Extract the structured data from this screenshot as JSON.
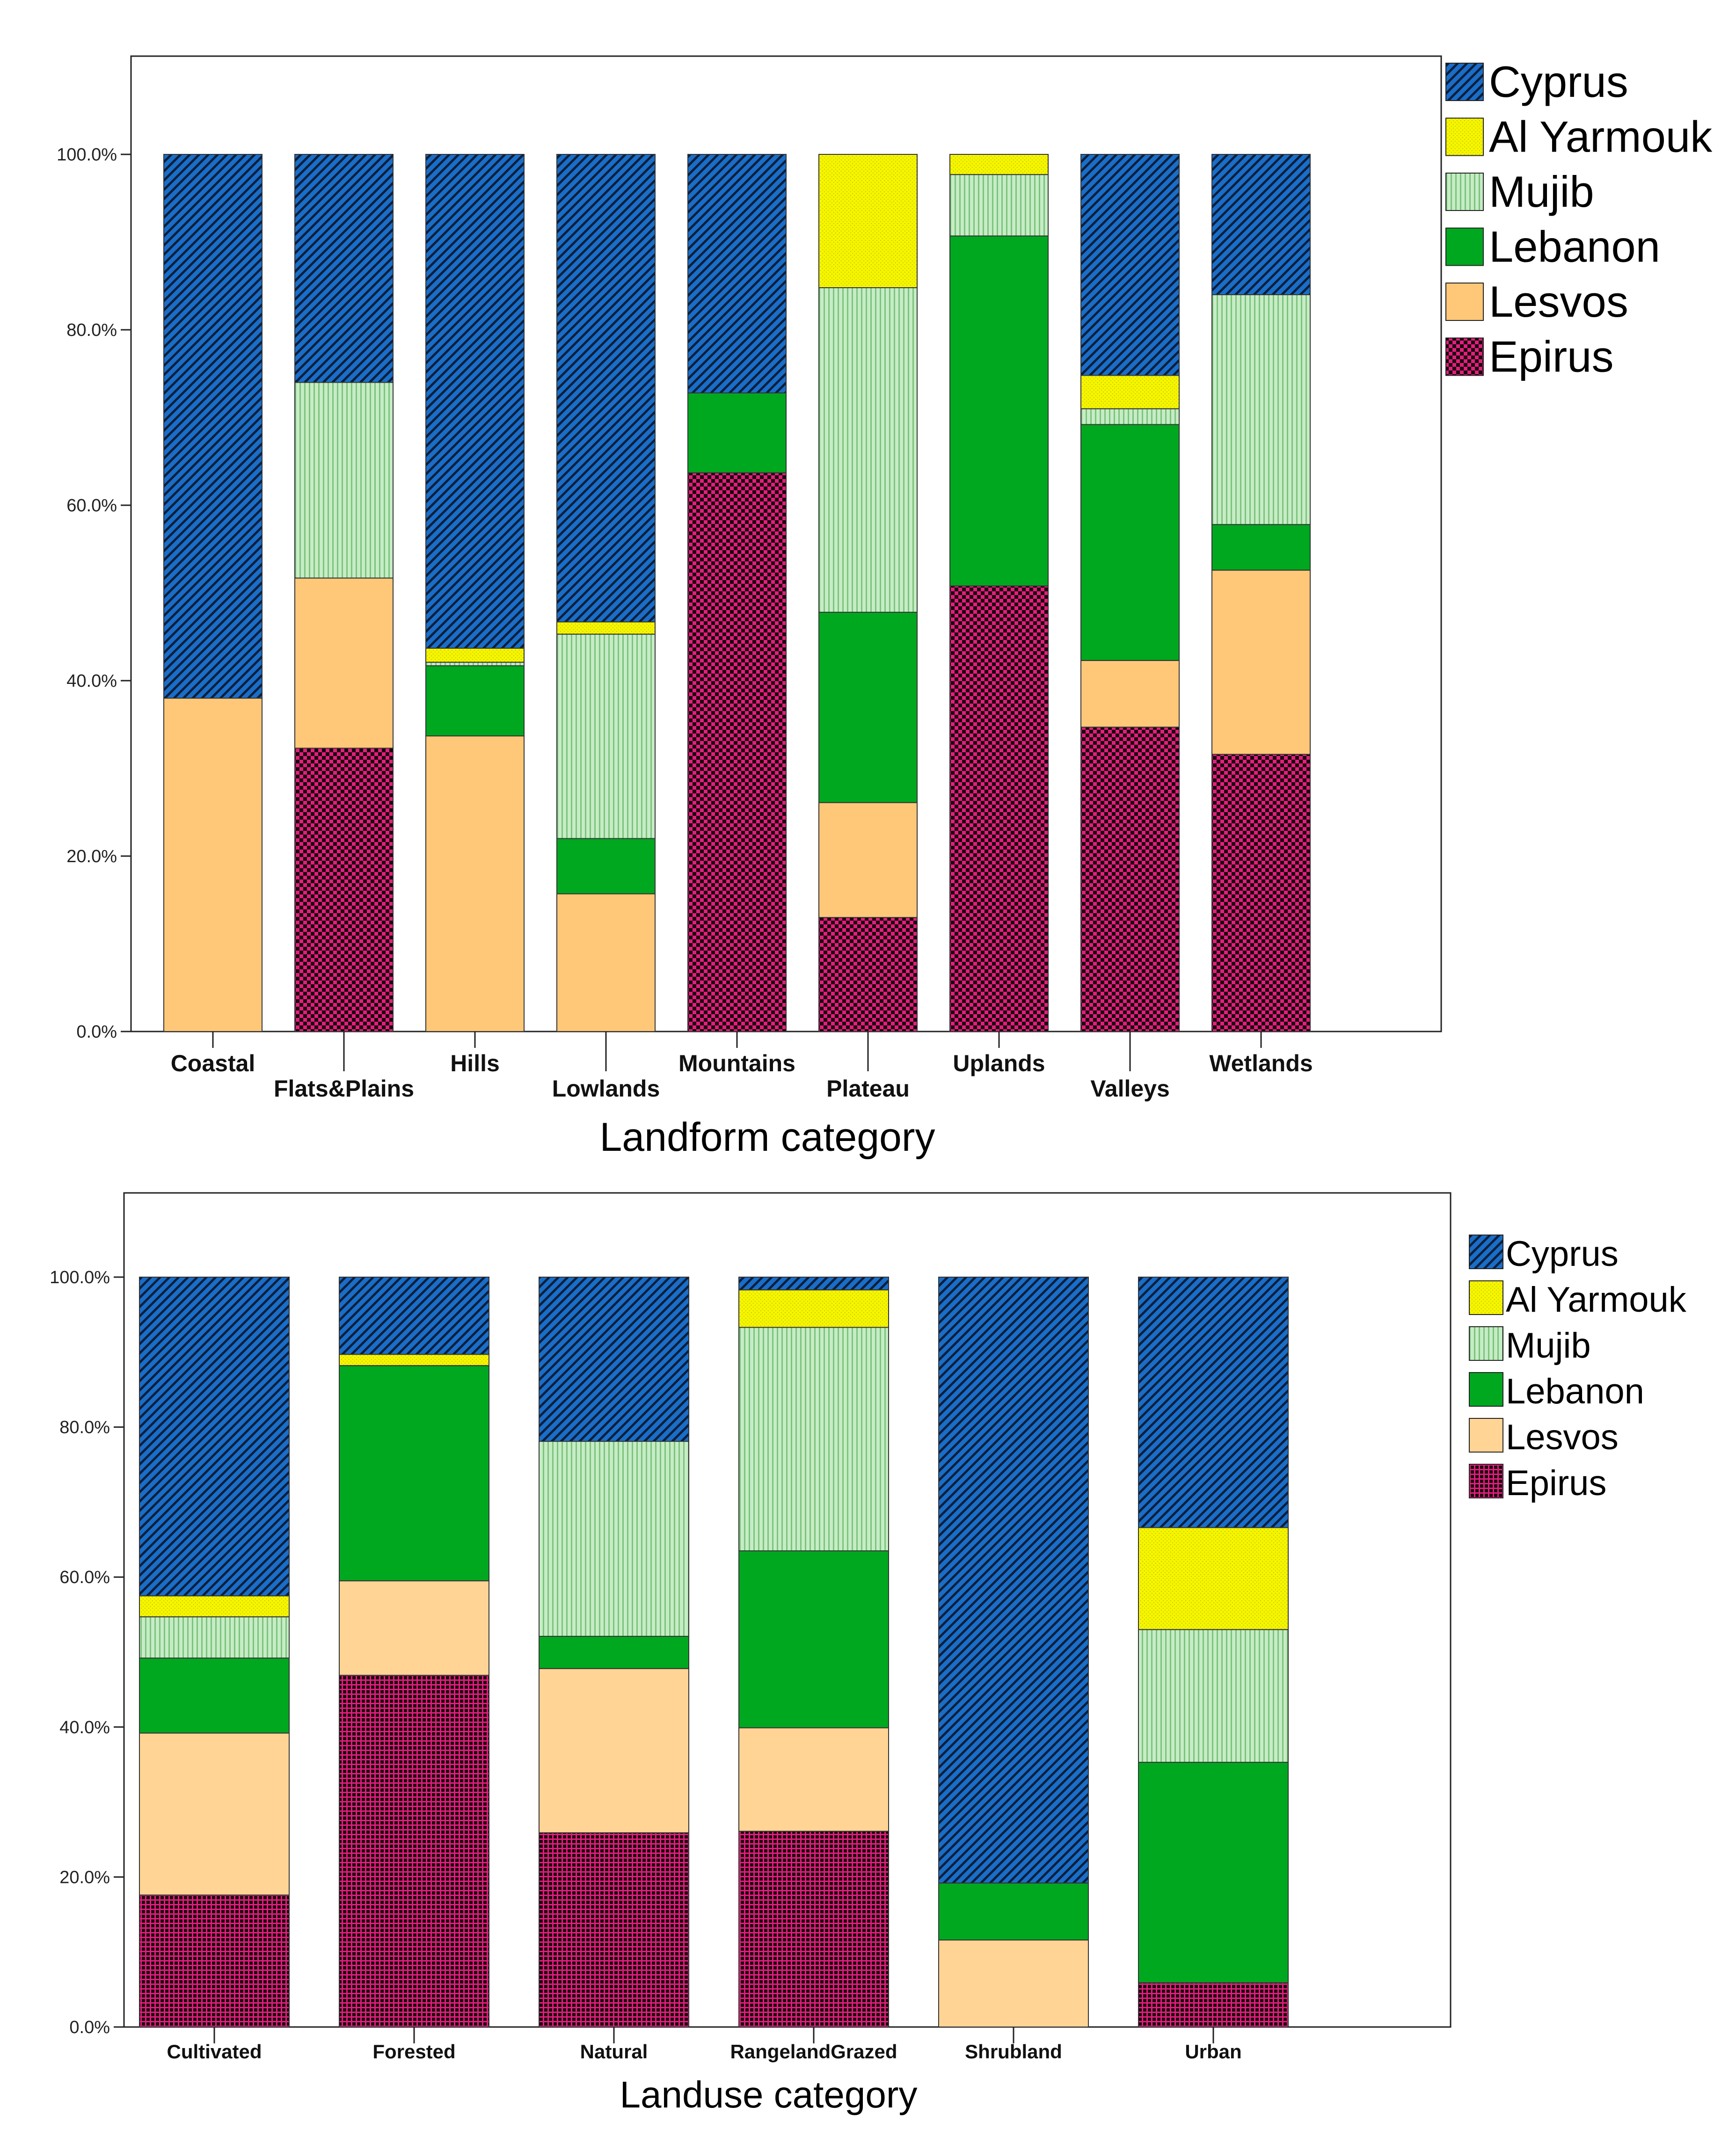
{
  "chart_data": [
    {
      "type": "bar",
      "stacked": true,
      "xlabel": "Landform category",
      "ylabel": "",
      "ylim": [
        0,
        100
      ],
      "yticks": [
        "0.0%",
        "20.0%",
        "40.0%",
        "60.0%",
        "80.0%",
        "100.0%"
      ],
      "legend_position": "right",
      "categories": [
        "Coastal",
        "Flats&Plains",
        "Hills",
        "Lowlands",
        "Mountains",
        "Plateau",
        "Uplands",
        "Valleys",
        "Wetlands"
      ],
      "series": [
        {
          "name": "Epirus",
          "color": "#e0207a",
          "values": [
            0,
            32.3,
            0,
            0,
            63.7,
            13.0,
            50.8,
            34.7,
            31.6
          ]
        },
        {
          "name": "Lesvos",
          "color": "#ffc878",
          "values": [
            38.0,
            19.4,
            33.7,
            15.7,
            0,
            13.1,
            0,
            7.6,
            21.0
          ]
        },
        {
          "name": "Lebanon",
          "color": "#00a820",
          "values": [
            0,
            0,
            8.0,
            6.3,
            9.1,
            21.7,
            39.9,
            26.9,
            5.2
          ]
        },
        {
          "name": "Mujib",
          "color": "#bfe8bf",
          "values": [
            0,
            22.3,
            0.4,
            23.3,
            0,
            37.0,
            7.0,
            1.8,
            26.2
          ]
        },
        {
          "name": "Al Yarmouk",
          "color": "#f5f500",
          "values": [
            0,
            0,
            1.6,
            1.4,
            0,
            15.2,
            2.3,
            3.8,
            0
          ]
        },
        {
          "name": "Cyprus",
          "color": "#1a6ec8",
          "values": [
            62.0,
            26.0,
            56.3,
            53.3,
            27.2,
            0,
            0,
            25.2,
            16.0
          ]
        }
      ],
      "legend": [
        "Cyprus",
        "Al Yarmouk",
        "Mujib",
        "Lebanon",
        "Lesvos",
        "Epirus"
      ]
    },
    {
      "type": "bar",
      "stacked": true,
      "xlabel": "Landuse category",
      "ylabel": "",
      "ylim": [
        0,
        100
      ],
      "yticks": [
        "0.0%",
        "20.0%",
        "40.0%",
        "60.0%",
        "80.0%",
        "100.0%"
      ],
      "legend_position": "right",
      "categories": [
        "Cultivated",
        "Forested",
        "Natural",
        "RangelandGrazed",
        "Shrubland",
        "Urban"
      ],
      "series": [
        {
          "name": "Epirus",
          "color": "#e0207a",
          "values": [
            17.6,
            46.9,
            25.9,
            26.1,
            0,
            5.9
          ]
        },
        {
          "name": "Lesvos",
          "color": "#ffd494",
          "values": [
            21.6,
            12.6,
            21.9,
            13.8,
            11.6,
            0
          ]
        },
        {
          "name": "Lebanon",
          "color": "#00a820",
          "values": [
            10.0,
            28.7,
            4.3,
            23.6,
            7.6,
            29.4
          ]
        },
        {
          "name": "Mujib",
          "color": "#bfe8bf",
          "values": [
            5.5,
            0,
            26.0,
            29.8,
            0,
            17.7
          ]
        },
        {
          "name": "Al Yarmouk",
          "color": "#f5f500",
          "values": [
            2.8,
            1.5,
            0,
            5.0,
            0,
            13.6
          ]
        },
        {
          "name": "Cyprus",
          "color": "#1a6ec8",
          "values": [
            42.5,
            10.3,
            21.9,
            1.7,
            80.8,
            33.4
          ]
        }
      ],
      "legend": [
        "Cyprus",
        "Al Yarmouk",
        "Mujib",
        "Lebanon",
        "Lesvos",
        "Epirus"
      ]
    }
  ]
}
